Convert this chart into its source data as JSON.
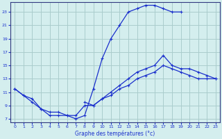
{
  "xlabel": "Graphe des températures (°c)",
  "xlim": [
    -0.5,
    23.5
  ],
  "ylim": [
    6.5,
    24.5
  ],
  "yticks": [
    7,
    9,
    11,
    13,
    15,
    17,
    19,
    21,
    23
  ],
  "xticks": [
    0,
    1,
    2,
    3,
    4,
    5,
    6,
    7,
    8,
    9,
    10,
    11,
    12,
    13,
    14,
    15,
    16,
    17,
    18,
    19,
    20,
    21,
    22,
    23
  ],
  "background_color": "#d4eeee",
  "grid_color": "#aacccc",
  "line_color": "#1a2fcc",
  "line1_x": [
    0,
    1,
    2,
    3,
    4,
    5,
    6,
    7,
    8,
    9,
    10,
    11,
    12,
    13,
    14,
    15,
    16,
    17,
    18,
    19,
    20,
    21,
    22,
    23
  ],
  "line1_y": [
    11.5,
    10.5,
    10.0,
    8.5,
    7.5,
    7.5,
    7.5,
    7.0,
    7.5,
    11.5,
    16.0,
    19.0,
    21.0,
    23.0,
    23.5,
    24.0,
    24.0,
    23.5,
    23.0,
    23.0,
    null,
    null,
    null,
    null
  ],
  "line2_x": [
    0,
    1,
    2,
    3,
    4,
    5,
    6,
    7,
    8,
    9,
    10,
    11,
    12,
    13,
    14,
    15,
    16,
    17,
    18,
    19,
    20,
    21,
    22,
    23
  ],
  "line2_y": [
    null,
    null,
    null,
    null,
    null,
    null,
    null,
    null,
    9.5,
    9.0,
    10.0,
    11.0,
    12.0,
    13.0,
    14.0,
    14.5,
    15.0,
    16.5,
    15.0,
    14.5,
    14.5,
    14.0,
    13.5,
    13.0
  ],
  "line3_x": [
    0,
    1,
    2,
    3,
    4,
    5,
    6,
    7,
    8,
    9,
    10,
    11,
    12,
    13,
    14,
    15,
    16,
    17,
    18,
    19,
    20,
    21,
    22,
    23
  ],
  "line3_y": [
    11.5,
    10.5,
    9.5,
    8.5,
    8.0,
    8.0,
    7.5,
    7.5,
    9.0,
    9.0,
    10.0,
    10.5,
    11.5,
    12.0,
    13.0,
    13.5,
    14.0,
    15.0,
    14.5,
    14.0,
    13.5,
    13.0,
    13.0,
    13.0
  ]
}
